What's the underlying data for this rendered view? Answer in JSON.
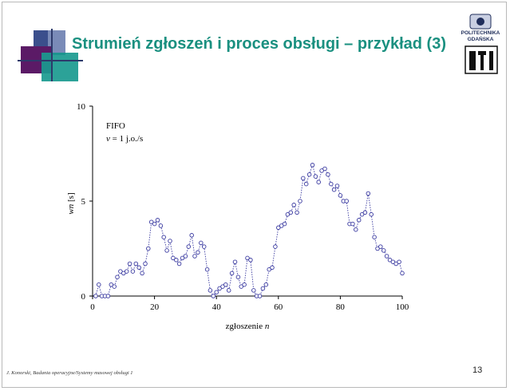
{
  "slide": {
    "title": "Strumień zgłoszeń i proces obsługi – przykład (3)",
    "footer": "J. Konorski, Badania operacyjne/Systemy masowej obsługi 1",
    "page_number": "13",
    "logo": {
      "line1": "POLITECHNIKA",
      "line2": "GDAŃSKA",
      "emblem": "ETI"
    },
    "colors": {
      "title": "#1a9080",
      "marker": "#3a3aa0",
      "line": "#3a3aa0"
    }
  },
  "chart_data": {
    "type": "scatter",
    "annotation_line1": "FIFO",
    "annotation_line2_var": "v",
    "annotation_line2_rest": " = 1 j.o./s",
    "xlabel_text": "zgłoszenie ",
    "xlabel_var": "n",
    "ylabel_var": "wn",
    "ylabel_unit": " [s]",
    "xlim": [
      0,
      100
    ],
    "ylim": [
      0,
      10
    ],
    "xticks": [
      0,
      20,
      40,
      60,
      80,
      100
    ],
    "yticks": [
      0,
      5,
      10
    ],
    "grid": false,
    "x": [
      1,
      2,
      3,
      4,
      5,
      6,
      7,
      8,
      9,
      10,
      11,
      12,
      13,
      14,
      15,
      16,
      17,
      18,
      19,
      20,
      21,
      22,
      23,
      24,
      25,
      26,
      27,
      28,
      29,
      30,
      31,
      32,
      33,
      34,
      35,
      36,
      37,
      38,
      39,
      40,
      41,
      42,
      43,
      44,
      45,
      46,
      47,
      48,
      49,
      50,
      51,
      52,
      53,
      54,
      55,
      56,
      57,
      58,
      59,
      60,
      61,
      62,
      63,
      64,
      65,
      66,
      67,
      68,
      69,
      70,
      71,
      72,
      73,
      74,
      75,
      76,
      77,
      78,
      79,
      80,
      81,
      82,
      83,
      84,
      85,
      86,
      87,
      88,
      89,
      90,
      91,
      92,
      93,
      94,
      95,
      96,
      97,
      98,
      99,
      100
    ],
    "y": [
      0.0,
      0.6,
      0.0,
      0.0,
      0.0,
      0.6,
      0.5,
      1.0,
      1.3,
      1.2,
      1.3,
      1.7,
      1.3,
      1.7,
      1.5,
      1.2,
      1.7,
      2.5,
      3.9,
      3.8,
      4.0,
      3.7,
      3.1,
      2.4,
      2.9,
      2.0,
      1.9,
      1.7,
      2.0,
      2.1,
      2.6,
      3.2,
      2.1,
      2.3,
      2.8,
      2.6,
      1.4,
      0.3,
      0.0,
      0.2,
      0.4,
      0.5,
      0.6,
      0.3,
      1.2,
      1.8,
      1.0,
      0.5,
      0.6,
      2.0,
      1.9,
      0.3,
      0.0,
      0.0,
      0.4,
      0.6,
      1.4,
      1.5,
      2.6,
      3.6,
      3.7,
      3.8,
      4.3,
      4.4,
      4.8,
      4.4,
      5.0,
      6.2,
      5.9,
      6.4,
      6.9,
      6.3,
      6.0,
      6.6,
      6.7,
      6.4,
      5.9,
      5.6,
      5.8,
      5.3,
      5.0,
      5.0,
      3.8,
      3.8,
      3.5,
      4.0,
      4.3,
      4.4,
      5.4,
      4.3,
      3.1,
      2.5,
      2.6,
      2.4,
      2.1,
      1.9,
      1.8,
      1.7,
      1.8,
      1.2
    ]
  }
}
